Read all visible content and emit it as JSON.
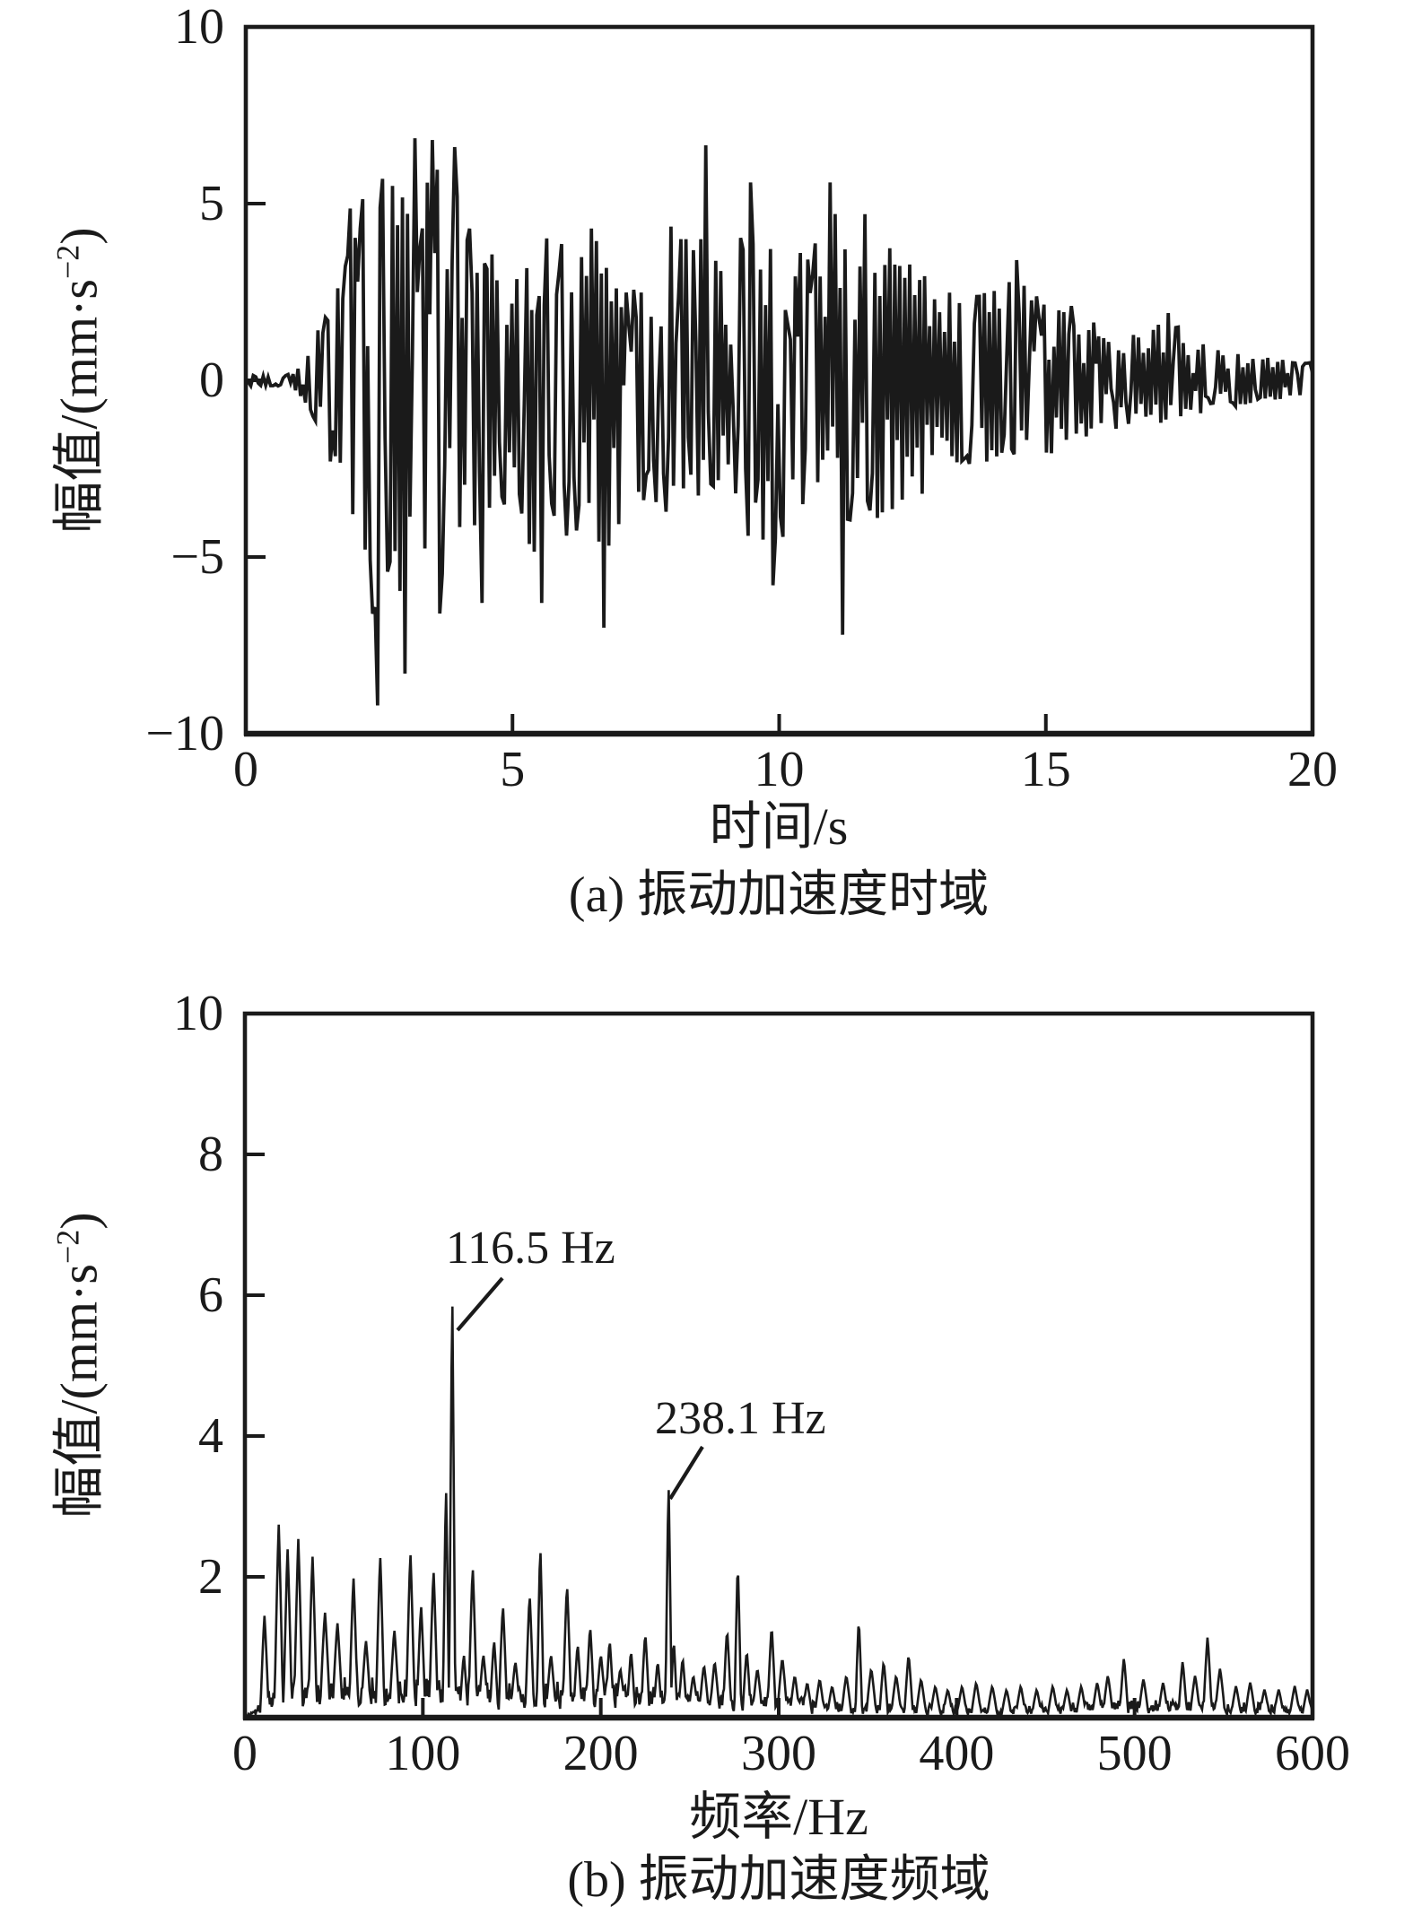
{
  "figure": {
    "background": "#ffffff",
    "ink_color": "#1a1a1a",
    "ylabel_prefix": "幅值/(mm·s",
    "ylabel_sup": "−2",
    "ylabel_suffix": ")"
  },
  "chart_data": [
    {
      "panel": "a",
      "type": "line",
      "title": "(a) 振动加速度时域",
      "xlabel": "时间/s",
      "ylabel": "幅值/(mm·s⁻²)",
      "xlim": [
        0,
        20
      ],
      "ylim": [
        -10,
        10
      ],
      "grid": false,
      "legend": "none",
      "line_color": "#1a1a1a",
      "xticks": {
        "values": [
          0,
          5,
          10,
          15,
          20
        ],
        "labels": [
          "0",
          "5",
          "10",
          "15",
          "20"
        ]
      },
      "yticks": {
        "values": [
          10,
          5,
          0,
          -5,
          -10
        ],
        "labels": [
          "10",
          "5",
          "0",
          "−5",
          "−10"
        ]
      },
      "envelope_keypoints": [
        [
          0,
          0.15,
          -0.15
        ],
        [
          0.8,
          0.2,
          -0.2
        ],
        [
          1.1,
          0.7,
          -0.6
        ],
        [
          1.4,
          1.7,
          -1.5
        ],
        [
          1.7,
          3.3,
          -2.8
        ],
        [
          1.95,
          4.9,
          -4.4
        ],
        [
          2.2,
          5.4,
          -5.8
        ],
        [
          2.5,
          5.6,
          -7.2
        ],
        [
          2.8,
          5.8,
          -7.4
        ],
        [
          3.1,
          6.5,
          -6.8
        ],
        [
          3.45,
          6.4,
          -6.2
        ],
        [
          3.8,
          6.2,
          -6.4
        ],
        [
          4.1,
          5.0,
          -4.6
        ],
        [
          4.45,
          3.7,
          -5.0
        ],
        [
          4.9,
          4.4,
          -3.7
        ],
        [
          5.3,
          3.9,
          -4.8
        ],
        [
          5.7,
          4.3,
          -5.5
        ],
        [
          6.1,
          4.2,
          -4.3
        ],
        [
          6.45,
          4.8,
          -4.5
        ],
        [
          6.75,
          4.4,
          -5.6
        ],
        [
          7.1,
          3.3,
          -3.5
        ],
        [
          7.5,
          3.5,
          -3.4
        ],
        [
          7.95,
          4.4,
          -3.8
        ],
        [
          8.35,
          4.5,
          -3.6
        ],
        [
          8.65,
          5.6,
          -3.9
        ],
        [
          9.0,
          3.7,
          -3.5
        ],
        [
          9.4,
          5.0,
          -4.6
        ],
        [
          9.8,
          3.8,
          -5.0
        ],
        [
          10.2,
          3.4,
          -4.4
        ],
        [
          10.6,
          3.9,
          -3.4
        ],
        [
          11.0,
          5.0,
          -4.5
        ],
        [
          11.3,
          4.3,
          -5.1
        ],
        [
          11.7,
          4.6,
          -4.2
        ],
        [
          12.05,
          4.4,
          -3.7
        ],
        [
          12.4,
          3.8,
          -3.6
        ],
        [
          12.8,
          3.1,
          -3.1
        ],
        [
          13.2,
          2.8,
          -2.7
        ],
        [
          13.7,
          2.4,
          -2.4
        ],
        [
          14.1,
          2.6,
          -2.2
        ],
        [
          14.5,
          3.1,
          -2.4
        ],
        [
          14.9,
          2.5,
          -2.3
        ],
        [
          15.3,
          2.3,
          -2.1
        ],
        [
          15.8,
          1.8,
          -1.7
        ],
        [
          16.3,
          1.5,
          -1.4
        ],
        [
          16.8,
          1.3,
          -1.2
        ],
        [
          17.3,
          1.8,
          -1.3
        ],
        [
          17.8,
          1.1,
          -1.0
        ],
        [
          18.3,
          0.85,
          -0.8
        ],
        [
          18.8,
          0.7,
          -0.7
        ],
        [
          19.4,
          0.6,
          -0.55
        ],
        [
          20,
          0.5,
          -0.45
        ]
      ],
      "notable_extremes": [
        [
          2.45,
          -9.2
        ],
        [
          2.55,
          5.7
        ],
        [
          3.0,
          -8.3
        ],
        [
          3.17,
          6.85
        ],
        [
          3.5,
          6.8
        ],
        [
          3.62,
          -6.6
        ],
        [
          3.9,
          6.6
        ],
        [
          4.45,
          -6.3
        ],
        [
          5.55,
          -6.3
        ],
        [
          6.7,
          -7.0
        ],
        [
          8.62,
          6.65
        ],
        [
          9.45,
          5.6
        ],
        [
          9.9,
          -5.8
        ],
        [
          10.97,
          5.6
        ],
        [
          11.2,
          -7.2
        ],
        [
          11.62,
          4.7
        ],
        [
          14.45,
          3.4
        ],
        [
          17.3,
          1.9
        ]
      ],
      "synth": {
        "seed": 20135,
        "n": 430,
        "mag_exponent": 0.45,
        "flip_prob": 0.15
      }
    },
    {
      "panel": "b",
      "type": "line",
      "title": "(b) 振动加速度频域",
      "xlabel": "频率/Hz",
      "ylabel": "幅值/(mm·s⁻²)",
      "xlim": [
        0,
        600
      ],
      "ylim": [
        0,
        10
      ],
      "grid": false,
      "legend": "none",
      "line_color": "#1a1a1a",
      "xticks": {
        "values": [
          0,
          100,
          200,
          300,
          400,
          500,
          600
        ],
        "labels": [
          "0",
          "100",
          "200",
          "300",
          "400",
          "500",
          "600"
        ]
      },
      "yticks": {
        "values": [
          10,
          8,
          6,
          4,
          2
        ],
        "labels": [
          "10",
          "8",
          "6",
          "4",
          "2"
        ]
      },
      "annotations": [
        {
          "label": "116.5 Hz",
          "freq": 116.5,
          "amp": 6.05
        },
        {
          "label": "238.1 Hz",
          "freq": 238.1,
          "amp": 3.35
        }
      ],
      "peaks_freq_amp_width": [
        [
          11,
          1.45,
          2.5
        ],
        [
          19,
          2.75,
          2.5
        ],
        [
          24,
          2.4,
          2.5
        ],
        [
          30,
          2.55,
          2.5
        ],
        [
          38,
          2.3,
          2.5
        ],
        [
          45,
          1.5,
          3
        ],
        [
          52,
          1.35,
          3
        ],
        [
          61,
          2.0,
          2.5
        ],
        [
          68,
          1.1,
          3
        ],
        [
          76,
          2.3,
          2.5
        ],
        [
          84,
          1.25,
          3
        ],
        [
          93,
          2.35,
          2.5
        ],
        [
          99,
          1.6,
          2.5
        ],
        [
          106,
          2.1,
          2.5
        ],
        [
          113,
          3.3,
          1.8
        ],
        [
          116.5,
          6.05,
          1.8
        ],
        [
          123,
          0.9,
          2.5
        ],
        [
          128,
          2.15,
          2.5
        ],
        [
          134,
          0.9,
          3
        ],
        [
          140,
          1.1,
          2.5
        ],
        [
          145,
          1.6,
          2.5
        ],
        [
          152,
          0.8,
          3
        ],
        [
          160,
          1.75,
          2.5
        ],
        [
          166,
          2.45,
          2
        ],
        [
          172,
          0.9,
          3
        ],
        [
          181,
          1.9,
          2.5
        ],
        [
          187,
          1.05,
          2.5
        ],
        [
          194,
          1.3,
          2.5
        ],
        [
          200,
          0.9,
          3
        ],
        [
          205,
          1.1,
          2.5
        ],
        [
          211,
          0.7,
          3
        ],
        [
          217,
          0.95,
          2.5
        ],
        [
          225,
          1.2,
          2.5
        ],
        [
          232,
          0.8,
          2.5
        ],
        [
          238.1,
          3.35,
          1.8
        ],
        [
          241,
          1.1,
          2
        ],
        [
          246,
          0.85,
          2.5
        ],
        [
          252,
          0.6,
          3
        ],
        [
          258,
          0.75,
          3
        ],
        [
          264,
          0.8,
          3
        ],
        [
          271,
          1.25,
          2.5
        ],
        [
          277,
          2.2,
          2
        ],
        [
          282,
          0.95,
          2.5
        ],
        [
          288,
          0.7,
          3
        ],
        [
          296,
          1.3,
          2.5
        ],
        [
          302,
          0.85,
          3
        ],
        [
          309,
          0.6,
          3
        ],
        [
          316,
          0.5,
          3
        ],
        [
          323,
          0.55,
          3
        ],
        [
          330,
          0.45,
          3
        ],
        [
          338,
          0.6,
          3
        ],
        [
          345,
          1.4,
          2
        ],
        [
          352,
          0.7,
          3
        ],
        [
          359,
          0.8,
          2.5
        ],
        [
          366,
          0.6,
          3
        ],
        [
          373,
          0.9,
          2.5
        ],
        [
          380,
          0.55,
          3
        ],
        [
          388,
          0.45,
          3
        ],
        [
          395,
          0.4,
          3
        ],
        [
          403,
          0.45,
          3
        ],
        [
          411,
          0.5,
          3
        ],
        [
          420,
          0.45,
          3
        ],
        [
          428,
          0.4,
          3
        ],
        [
          436,
          0.45,
          3
        ],
        [
          445,
          0.4,
          3
        ],
        [
          454,
          0.45,
          3
        ],
        [
          462,
          0.4,
          3
        ],
        [
          470,
          0.45,
          3
        ],
        [
          479,
          0.5,
          3
        ],
        [
          485,
          0.6,
          3
        ],
        [
          494,
          0.85,
          2.5
        ],
        [
          505,
          0.55,
          3
        ],
        [
          516,
          0.5,
          3
        ],
        [
          527,
          0.8,
          2.5
        ],
        [
          534,
          0.6,
          3
        ],
        [
          541,
          1.15,
          2.5
        ],
        [
          548,
          0.7,
          3
        ],
        [
          557,
          0.45,
          3
        ],
        [
          565,
          0.5,
          3
        ],
        [
          573,
          0.4,
          3
        ],
        [
          581,
          0.4,
          3
        ],
        [
          590,
          0.45,
          3
        ],
        [
          597,
          0.4,
          3
        ]
      ],
      "noise_floor_keypoints": [
        [
          0,
          0.03
        ],
        [
          6,
          0.06
        ],
        [
          12,
          0.22
        ],
        [
          20,
          0.3
        ],
        [
          60,
          0.32
        ],
        [
          120,
          0.3
        ],
        [
          200,
          0.28
        ],
        [
          240,
          0.22
        ],
        [
          310,
          0.16
        ],
        [
          340,
          0.12
        ],
        [
          420,
          0.1
        ],
        [
          460,
          0.12
        ],
        [
          520,
          0.14
        ],
        [
          560,
          0.12
        ],
        [
          600,
          0.1
        ]
      ],
      "synth": {
        "seed": 777,
        "n": 1200
      }
    }
  ]
}
